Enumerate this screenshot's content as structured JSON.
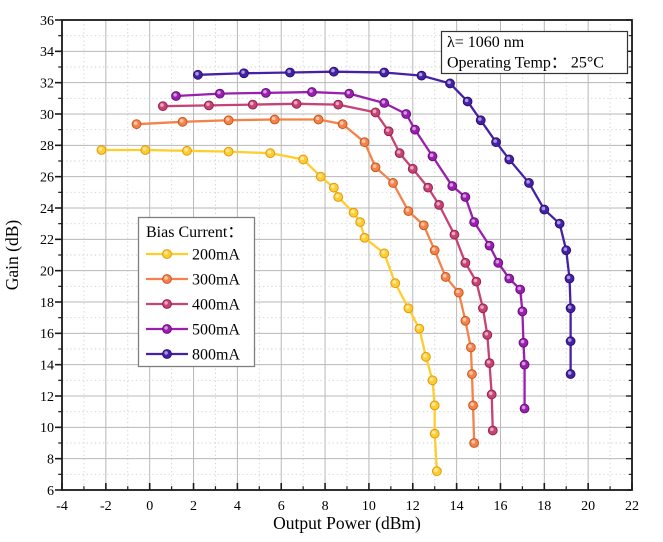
{
  "chart_data": {
    "type": "line",
    "title": "",
    "xlabel": "Output Power (dBm)",
    "ylabel": "Gain (dB)",
    "xlim": [
      -4,
      22
    ],
    "ylim": [
      6,
      36
    ],
    "xticks": [
      -4,
      -2,
      0,
      2,
      4,
      6,
      8,
      10,
      12,
      14,
      16,
      18,
      20,
      22
    ],
    "yticks": [
      6,
      8,
      10,
      12,
      14,
      16,
      18,
      20,
      22,
      24,
      26,
      28,
      30,
      32,
      34,
      36
    ],
    "x_minor_step": 1,
    "y_minor_step": 1,
    "grid": "major-solid-minor-dotted",
    "legend": {
      "title": "Bias Current：",
      "position": "left-center",
      "entries": [
        "200mA",
        "300mA",
        "400mA",
        "500mA",
        "800mA"
      ]
    },
    "annotation": {
      "line1": "λ= 1060 nm",
      "line2": "Operating Temp： 25°C"
    },
    "colors": {
      "grid_major": "#b8b8b8",
      "grid_minor": "#d2d2d2",
      "frame": "#1a1a1a"
    },
    "series": [
      {
        "name": "200mA",
        "color": "#FFCE2E",
        "edge": "#E09A12",
        "points": [
          [
            -2.2,
            27.7
          ],
          [
            -0.2,
            27.7
          ],
          [
            1.7,
            27.65
          ],
          [
            3.6,
            27.6
          ],
          [
            5.5,
            27.5
          ],
          [
            7.0,
            27.1
          ],
          [
            7.8,
            26.0
          ],
          [
            8.4,
            25.3
          ],
          [
            8.6,
            24.7
          ],
          [
            9.3,
            23.7
          ],
          [
            9.6,
            23.1
          ],
          [
            9.8,
            22.1
          ],
          [
            10.7,
            21.1
          ],
          [
            11.2,
            19.2
          ],
          [
            11.8,
            17.6
          ],
          [
            12.3,
            16.3
          ],
          [
            12.6,
            14.5
          ],
          [
            12.9,
            13.0
          ],
          [
            13.0,
            11.4
          ],
          [
            13.0,
            9.6
          ],
          [
            13.1,
            7.2
          ]
        ]
      },
      {
        "name": "300mA",
        "color": "#F5824A",
        "edge": "#C75A1E",
        "points": [
          [
            -0.6,
            29.35
          ],
          [
            1.5,
            29.5
          ],
          [
            3.6,
            29.6
          ],
          [
            5.7,
            29.65
          ],
          [
            7.7,
            29.65
          ],
          [
            8.8,
            29.35
          ],
          [
            9.8,
            28.2
          ],
          [
            10.3,
            26.6
          ],
          [
            11.1,
            25.6
          ],
          [
            11.8,
            23.8
          ],
          [
            12.5,
            22.9
          ],
          [
            13.0,
            21.3
          ],
          [
            13.5,
            19.6
          ],
          [
            14.1,
            18.6
          ],
          [
            14.4,
            16.8
          ],
          [
            14.65,
            15.1
          ],
          [
            14.7,
            13.4
          ],
          [
            14.75,
            11.4
          ],
          [
            14.8,
            9.0
          ]
        ]
      },
      {
        "name": "400mA",
        "color": "#C74275",
        "edge": "#96234F",
        "points": [
          [
            0.6,
            30.5
          ],
          [
            2.7,
            30.55
          ],
          [
            4.7,
            30.6
          ],
          [
            6.7,
            30.65
          ],
          [
            8.6,
            30.6
          ],
          [
            10.3,
            30.1
          ],
          [
            10.9,
            28.9
          ],
          [
            11.4,
            27.5
          ],
          [
            12.0,
            26.5
          ],
          [
            12.7,
            25.3
          ],
          [
            13.2,
            24.2
          ],
          [
            13.9,
            22.3
          ],
          [
            14.4,
            20.5
          ],
          [
            14.9,
            19.3
          ],
          [
            15.2,
            17.6
          ],
          [
            15.4,
            15.9
          ],
          [
            15.5,
            14.1
          ],
          [
            15.6,
            12.1
          ],
          [
            15.65,
            9.8
          ]
        ]
      },
      {
        "name": "500mA",
        "color": "#9A1FAE",
        "edge": "#6B0F7E",
        "points": [
          [
            1.2,
            31.15
          ],
          [
            3.2,
            31.3
          ],
          [
            5.3,
            31.35
          ],
          [
            7.4,
            31.4
          ],
          [
            9.1,
            31.3
          ],
          [
            10.7,
            30.7
          ],
          [
            11.7,
            30.0
          ],
          [
            12.1,
            29.0
          ],
          [
            12.9,
            27.3
          ],
          [
            13.8,
            25.4
          ],
          [
            14.4,
            24.7
          ],
          [
            14.8,
            23.1
          ],
          [
            15.5,
            21.6
          ],
          [
            15.9,
            20.5
          ],
          [
            16.4,
            19.5
          ],
          [
            16.9,
            18.8
          ],
          [
            17.0,
            17.4
          ],
          [
            17.05,
            15.4
          ],
          [
            17.1,
            14.0
          ],
          [
            17.1,
            11.2
          ]
        ]
      },
      {
        "name": "800mA",
        "color": "#4521A8",
        "edge": "#2B1170",
        "points": [
          [
            2.2,
            32.5
          ],
          [
            4.3,
            32.6
          ],
          [
            6.4,
            32.65
          ],
          [
            8.4,
            32.7
          ],
          [
            10.7,
            32.65
          ],
          [
            12.4,
            32.45
          ],
          [
            13.7,
            31.95
          ],
          [
            14.5,
            30.8
          ],
          [
            15.1,
            29.6
          ],
          [
            15.8,
            28.2
          ],
          [
            16.4,
            27.1
          ],
          [
            17.3,
            25.6
          ],
          [
            18.0,
            23.9
          ],
          [
            18.7,
            23.0
          ],
          [
            19.0,
            21.3
          ],
          [
            19.15,
            19.5
          ],
          [
            19.2,
            17.6
          ],
          [
            19.2,
            15.5
          ],
          [
            19.2,
            13.4
          ]
        ]
      }
    ]
  }
}
